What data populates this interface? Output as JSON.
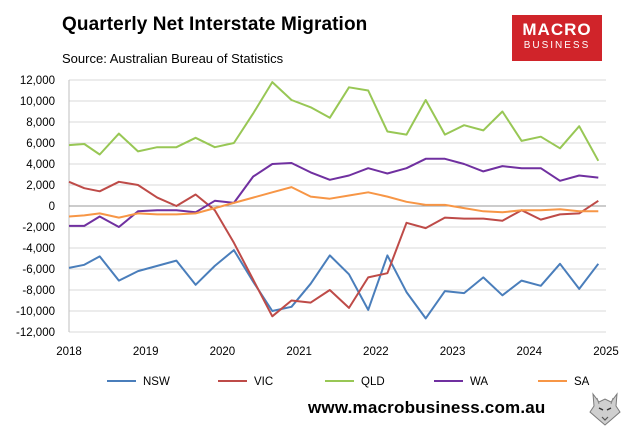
{
  "header": {
    "title": "Quarterly Net Interstate Migration",
    "source": "Source: Australian Bureau of Statistics"
  },
  "logo": {
    "line1": "MACRO",
    "line2": "BUSINESS"
  },
  "footer": {
    "url": "www.macrobusiness.com.au",
    "icon": "wolf-icon"
  },
  "chart_data": {
    "type": "line",
    "title": "Quarterly Net Interstate Migration",
    "xlabel": "",
    "ylabel": "",
    "xlim": [
      2018,
      2025
    ],
    "ylim": [
      -12000,
      12000
    ],
    "ytick_step": 2000,
    "yticks": [
      "12,000",
      "10,000",
      "8,000",
      "6,000",
      "4,000",
      "2,000",
      "0",
      "-2,000",
      "-4,000",
      "-6,000",
      "-8,000",
      "-10,000",
      "-12,000"
    ],
    "xticks": [
      "2018",
      "2019",
      "2020",
      "2021",
      "2022",
      "2023",
      "2024",
      "2025"
    ],
    "grid": "horizontal",
    "legend_position": "bottom",
    "x": [
      2018.0,
      2018.2,
      2018.4,
      2018.65,
      2018.9,
      2019.15,
      2019.4,
      2019.65,
      2019.9,
      2020.15,
      2020.4,
      2020.65,
      2020.9,
      2021.15,
      2021.4,
      2021.65,
      2021.9,
      2022.15,
      2022.4,
      2022.65,
      2022.9,
      2023.15,
      2023.4,
      2023.65,
      2023.9,
      2024.15,
      2024.4,
      2024.65,
      2024.9
    ],
    "series": [
      {
        "name": "NSW",
        "color": "#4a7ebb",
        "values": [
          -5900,
          -5600,
          -4800,
          -7100,
          -6200,
          -5700,
          -5200,
          -7500,
          -5700,
          -4200,
          -7200,
          -10000,
          -9600,
          -7400,
          -4700,
          -6500,
          -9900,
          -4700,
          -8200,
          -10700,
          -8100,
          -8300,
          -6800,
          -8500,
          -7100,
          -7600,
          -5500,
          -7900,
          -5500
        ]
      },
      {
        "name": "VIC",
        "color": "#be4b48",
        "values": [
          2300,
          1700,
          1400,
          2300,
          2000,
          800,
          0,
          1100,
          -400,
          -3500,
          -7000,
          -10500,
          -9000,
          -9200,
          -8000,
          -9700,
          -6800,
          -6400,
          -1600,
          -2100,
          -1100,
          -1200,
          -1200,
          -1400,
          -400,
          -1300,
          -800,
          -700,
          500
        ]
      },
      {
        "name": "QLD",
        "color": "#98c755",
        "values": [
          5800,
          5900,
          4900,
          6900,
          5200,
          5600,
          5600,
          6500,
          5600,
          6000,
          8800,
          11800,
          10100,
          9400,
          8400,
          11300,
          11000,
          7100,
          6800,
          10100,
          6800,
          7700,
          7200,
          9000,
          6200,
          6600,
          5500,
          7600,
          4300
        ]
      },
      {
        "name": "WA",
        "color": "#7030a0",
        "values": [
          -1900,
          -1900,
          -1000,
          -2000,
          -500,
          -400,
          -400,
          -600,
          500,
          300,
          2800,
          4000,
          4100,
          3200,
          2500,
          2900,
          3600,
          3100,
          3600,
          4500,
          4500,
          4000,
          3300,
          3800,
          3600,
          3600,
          2400,
          2900,
          2700
        ]
      },
      {
        "name": "SA",
        "color": "#f79646",
        "values": [
          -1000,
          -900,
          -700,
          -1100,
          -700,
          -800,
          -800,
          -700,
          -200,
          300,
          800,
          1300,
          1800,
          900,
          700,
          1000,
          1300,
          900,
          400,
          100,
          100,
          -200,
          -500,
          -600,
          -400,
          -400,
          -300,
          -500,
          -500
        ]
      }
    ]
  }
}
